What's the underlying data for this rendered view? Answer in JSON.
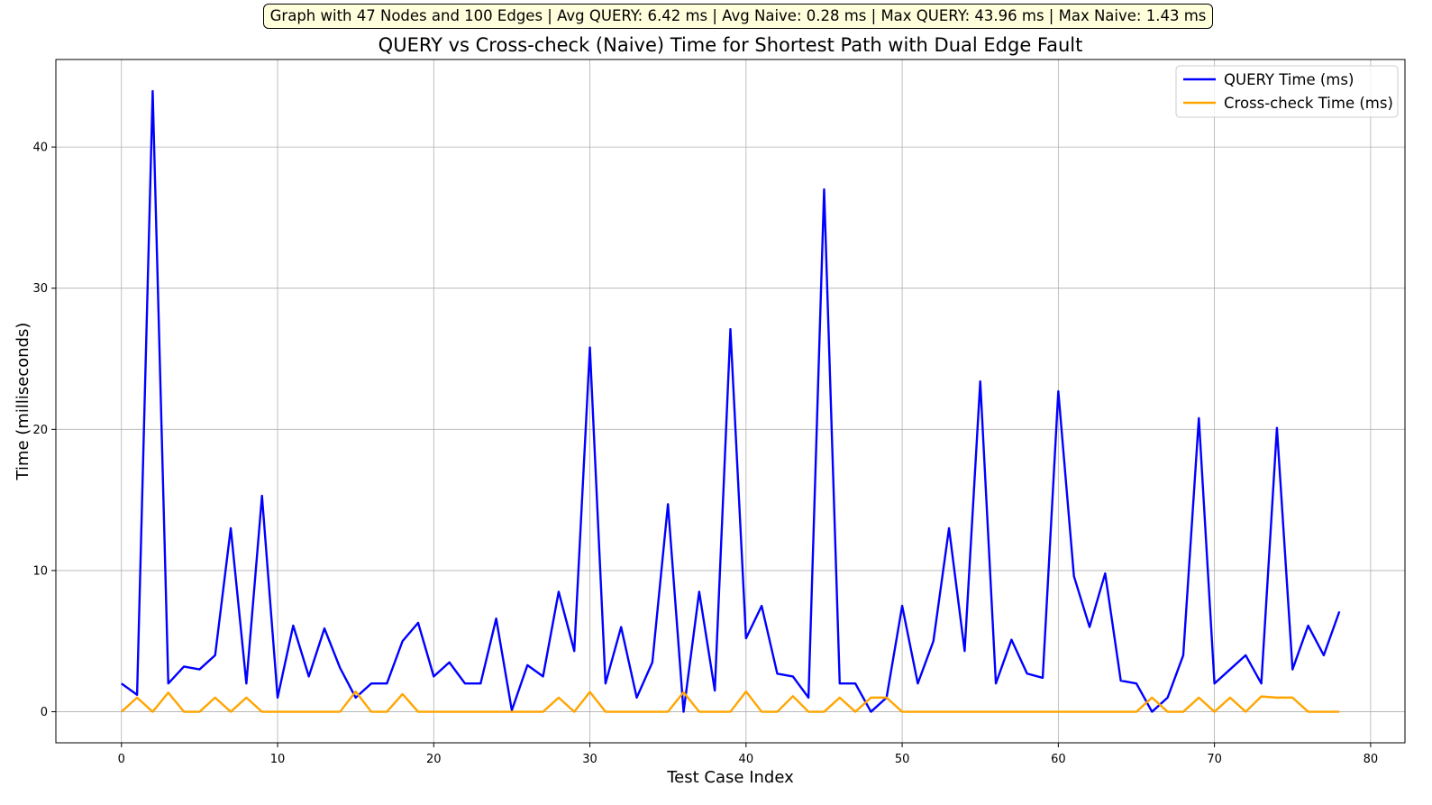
{
  "summary": "Graph with 47 Nodes and 100 Edges | Avg QUERY: 6.42 ms | Avg Naive: 0.28 ms | Max QUERY: 43.96 ms | Max Naive: 1.43 ms",
  "chart_data": {
    "type": "line",
    "title": "QUERY vs Cross-check (Naive) Time for Shortest Path with Dual Edge Fault",
    "xlabel": "Test Case Index",
    "ylabel": "Time (milliseconds)",
    "xlim": [
      -4.2,
      82.2
    ],
    "ylim": [
      -2.2,
      46.2
    ],
    "xticks": [
      0,
      10,
      20,
      30,
      40,
      50,
      60,
      70,
      80
    ],
    "yticks": [
      0,
      10,
      20,
      30,
      40
    ],
    "grid": true,
    "legend_position": "top-right",
    "x": [
      0,
      1,
      2,
      3,
      4,
      5,
      6,
      7,
      8,
      9,
      10,
      11,
      12,
      13,
      14,
      15,
      16,
      17,
      18,
      19,
      20,
      21,
      22,
      23,
      24,
      25,
      26,
      27,
      28,
      29,
      30,
      31,
      32,
      33,
      34,
      35,
      36,
      37,
      38,
      39,
      40,
      41,
      42,
      43,
      44,
      45,
      46,
      47,
      48,
      49,
      50,
      51,
      52,
      53,
      54,
      55,
      56,
      57,
      58,
      59,
      60,
      61,
      62,
      63,
      64,
      65,
      66,
      67,
      68,
      69,
      70,
      71,
      72,
      73,
      74,
      75,
      76,
      77,
      78
    ],
    "series": [
      {
        "name": "QUERY Time (ms)",
        "color": "#0000ff",
        "values": [
          2.0,
          1.2,
          43.96,
          2.0,
          3.2,
          3.0,
          4.0,
          13.0,
          2.0,
          15.3,
          1.0,
          6.1,
          2.5,
          5.9,
          3.1,
          1.0,
          2.0,
          2.0,
          5.0,
          6.3,
          2.5,
          3.5,
          2.0,
          2.0,
          6.6,
          0.1,
          3.3,
          2.5,
          8.5,
          4.3,
          25.8,
          2.0,
          6.0,
          1.0,
          3.5,
          14.7,
          0.0,
          8.5,
          1.5,
          27.1,
          5.2,
          7.5,
          2.7,
          2.5,
          1.0,
          37.0,
          2.0,
          2.0,
          0.0,
          1.0,
          7.5,
          2.0,
          5.0,
          13.0,
          4.3,
          23.4,
          2.0,
          5.1,
          2.7,
          2.4,
          22.7,
          9.6,
          6.0,
          9.8,
          2.2,
          2.0,
          0.0,
          1.0,
          4.0,
          20.8,
          2.0,
          3.0,
          4.0,
          2.0,
          20.1,
          3.0,
          6.1,
          4.0,
          7.1
        ]
      },
      {
        "name": "Cross-check Time (ms)",
        "color": "#ffa500",
        "values": [
          0.0,
          1.0,
          0.0,
          1.35,
          0.0,
          0.0,
          1.0,
          0.0,
          1.0,
          0.0,
          0.0,
          0.0,
          0.0,
          0.0,
          0.0,
          1.43,
          0.0,
          0.0,
          1.25,
          0.0,
          0.0,
          0.0,
          0.0,
          0.0,
          0.0,
          0.0,
          0.0,
          0.0,
          1.0,
          0.0,
          1.4,
          0.0,
          0.0,
          0.0,
          0.0,
          0.0,
          1.38,
          0.0,
          0.0,
          0.0,
          1.43,
          0.0,
          0.0,
          1.1,
          0.0,
          0.0,
          1.0,
          0.0,
          1.0,
          1.0,
          0.0,
          0.0,
          0.0,
          0.0,
          0.0,
          0.0,
          0.0,
          0.0,
          0.0,
          0.0,
          0.0,
          0.0,
          0.0,
          0.0,
          0.0,
          0.0,
          1.0,
          0.0,
          0.0,
          1.0,
          0.0,
          1.0,
          0.0,
          1.08,
          1.0,
          1.0,
          0.0,
          0.0,
          0.0
        ]
      }
    ]
  }
}
